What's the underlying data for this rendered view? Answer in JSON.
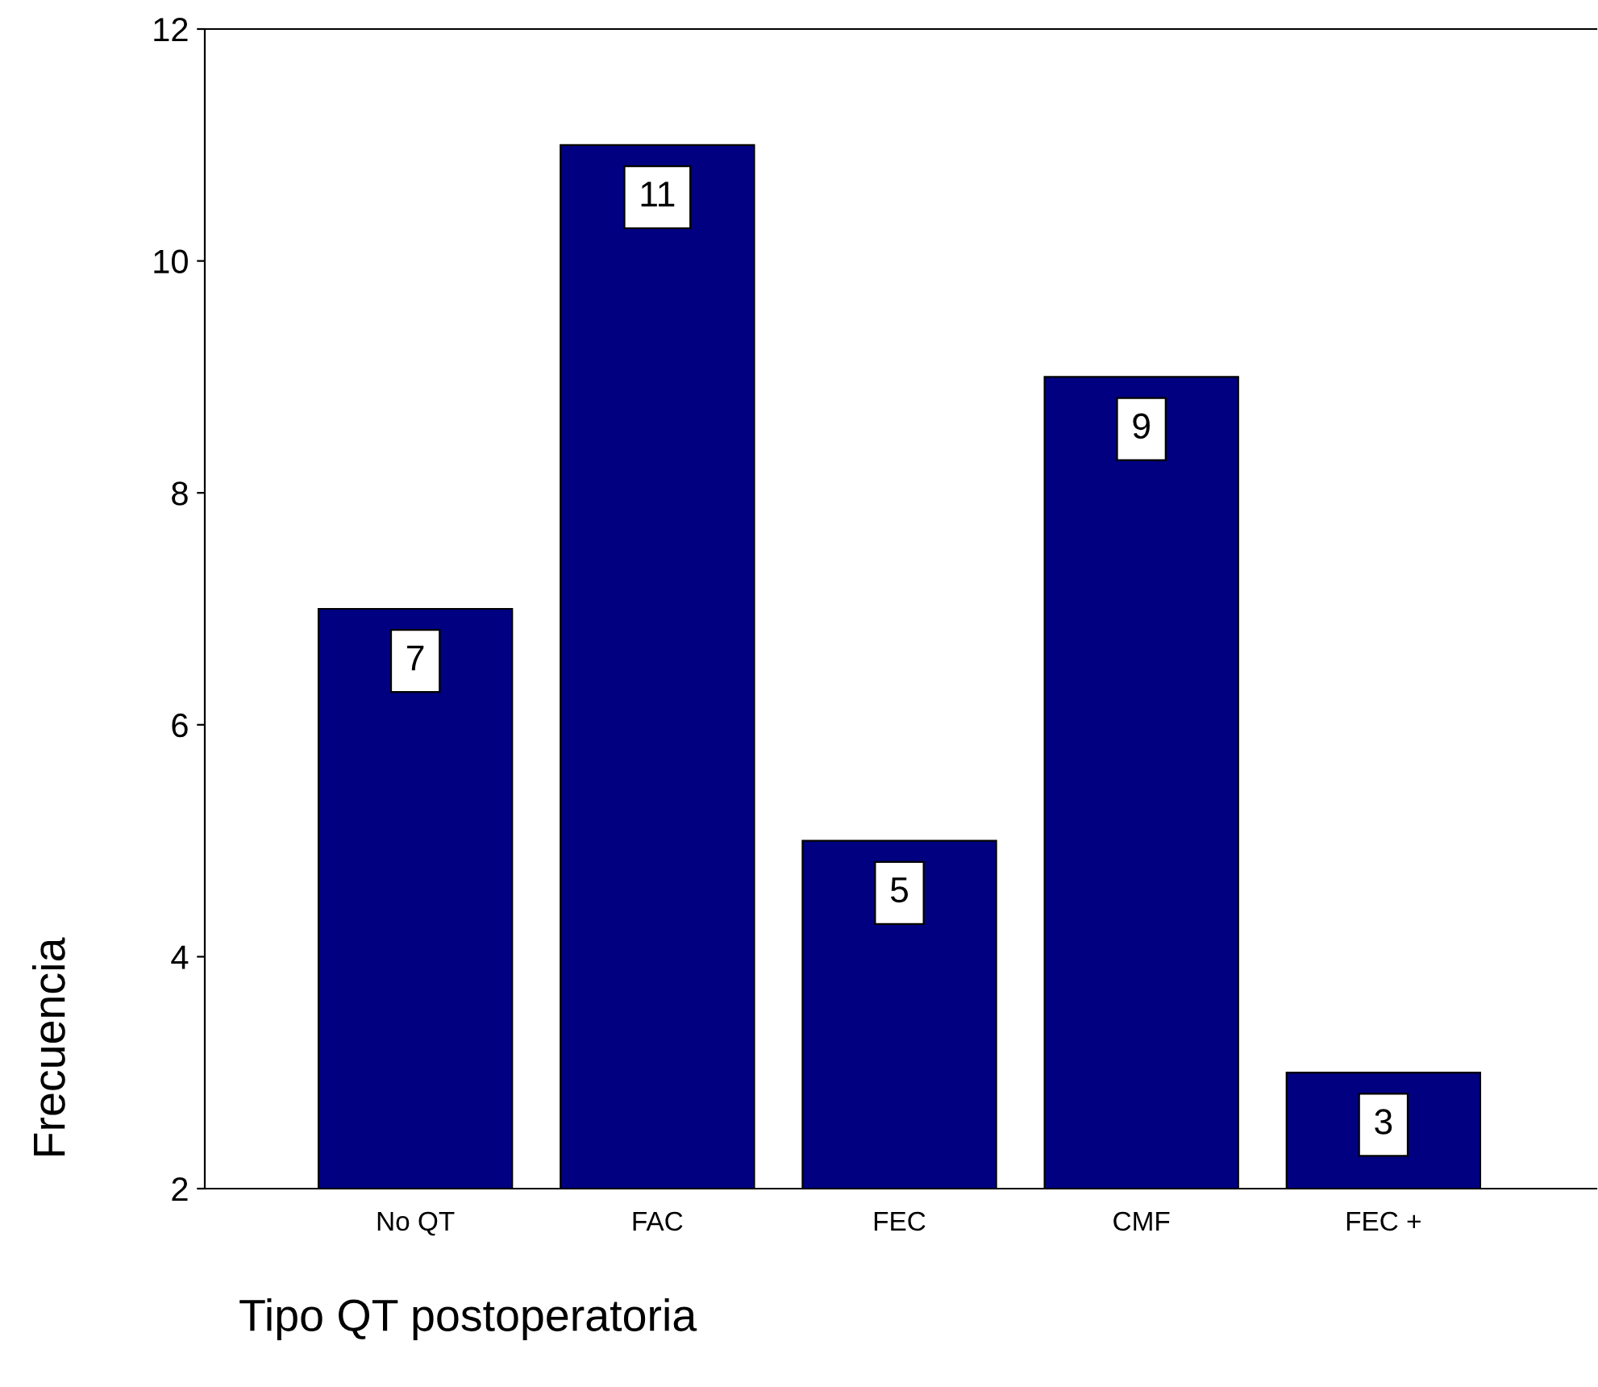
{
  "chart_data": {
    "type": "bar",
    "xlabel": "Tipo QT postoperatoria",
    "ylabel": "Frecuencia",
    "categories": [
      "No QT",
      "FAC",
      "FEC",
      "CMF",
      "FEC +"
    ],
    "values": [
      7,
      11,
      5,
      9,
      3
    ],
    "color": "#000080",
    "ylim": [
      2,
      12
    ],
    "yticks": [
      2,
      4,
      6,
      8,
      10,
      12
    ],
    "grid": false,
    "data_labels": true
  }
}
